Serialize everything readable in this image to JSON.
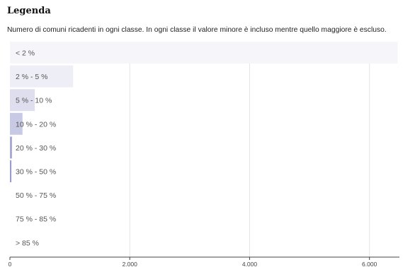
{
  "legend": {
    "title": "Legenda",
    "subtitle": "Numero di comuni ricadenti in ogni classe. In ogni classe il valore minore è incluso mentre quello maggiore è escluso."
  },
  "colors": {
    "grid": "#e4e4e4",
    "axis": "#444444",
    "label": "#555555"
  },
  "chart_data": {
    "type": "bar",
    "orientation": "horizontal",
    "title": "",
    "xlabel": "",
    "ylabel": "",
    "categories": [
      "< 2 %",
      "2 % - 5 %",
      "5 % - 10 %",
      "10 % - 20 %",
      "20 % - 30 %",
      "30 % - 50 %",
      "50 % - 75 %",
      "75 % - 85 %",
      "> 85 %"
    ],
    "values": [
      6470,
      1055,
      415,
      210,
      35,
      25,
      0,
      0,
      0
    ],
    "bar_colors": [
      "#f6f6fa",
      "#eeeef6",
      "#dedeee",
      "#c8c9e4",
      "#a9aad4",
      "#9b9ccc",
      "#ffffff",
      "#ffffff",
      "#ffffff"
    ],
    "xlim": [
      0,
      6500
    ],
    "x_ticks": [
      0,
      2000,
      4000,
      6000
    ],
    "x_tick_labels": [
      "0",
      "2.000",
      "4.000",
      "6.000"
    ],
    "grid": true,
    "legend": "none"
  }
}
